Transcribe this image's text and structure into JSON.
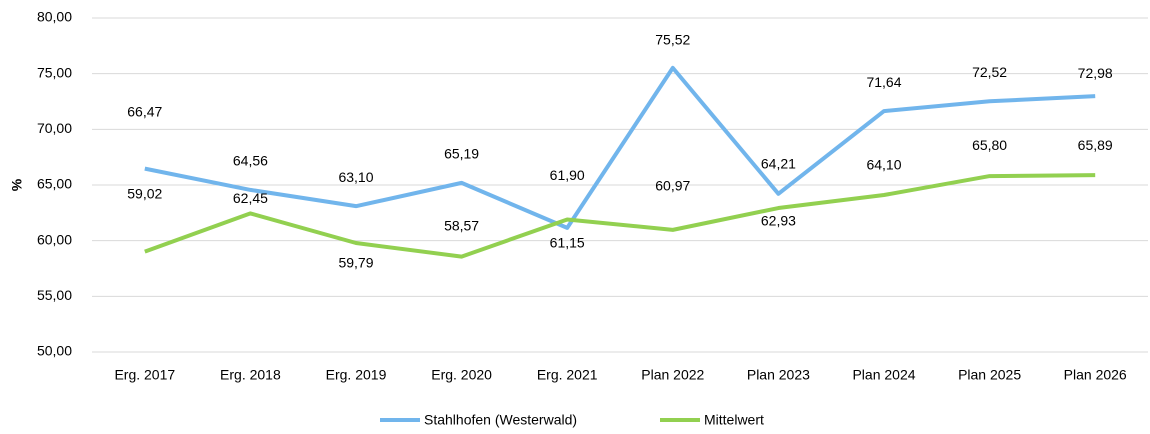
{
  "chart_data": {
    "type": "line",
    "ylabel": "%",
    "categories": [
      "Erg. 2017",
      "Erg. 2018",
      "Erg. 2019",
      "Erg. 2020",
      "Erg. 2021",
      "Plan 2022",
      "Plan 2023",
      "Plan 2024",
      "Plan 2025",
      "Plan 2026"
    ],
    "series": [
      {
        "name": "Stahlhofen (Westerwald)",
        "color": "#71b5ec",
        "values": [
          66.47,
          64.56,
          63.1,
          65.19,
          61.15,
          75.52,
          64.21,
          71.64,
          72.52,
          72.98
        ],
        "value_labels": [
          "66,47",
          "64,56",
          "63,10",
          "65,19",
          "61,15",
          "75,52",
          "64,21",
          "71,64",
          "72,52",
          "72,98"
        ]
      },
      {
        "name": "Mittelwert",
        "color": "#92d050",
        "values": [
          59.02,
          62.45,
          59.79,
          58.57,
          61.9,
          60.97,
          62.93,
          64.1,
          65.8,
          65.89
        ],
        "value_labels": [
          "59,02",
          "62,45",
          "59,79",
          "58,57",
          "61,90",
          "60,97",
          "62,93",
          "64,10",
          "65,80",
          "65,89"
        ]
      }
    ],
    "ylim": [
      50,
      80
    ],
    "yticks": [
      {
        "value": 50,
        "label": "50,00"
      },
      {
        "value": 55,
        "label": "55,00"
      },
      {
        "value": 60,
        "label": "60,00"
      },
      {
        "value": 65,
        "label": "65,00"
      },
      {
        "value": 70,
        "label": "70,00"
      },
      {
        "value": 75,
        "label": "75,00"
      },
      {
        "value": 80,
        "label": "80,00"
      }
    ],
    "grid": true,
    "legend": "bottom"
  }
}
